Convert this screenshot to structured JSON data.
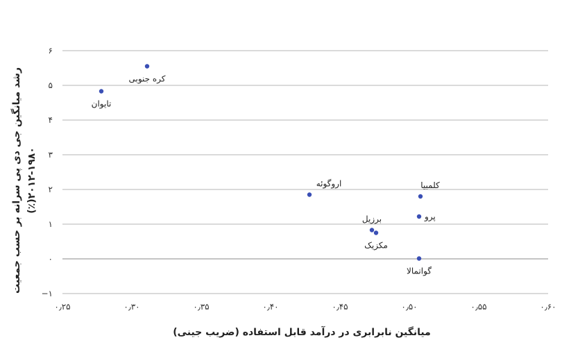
{
  "chart_data": {
    "type": "scatter",
    "xlabel": "میانگین نابرابری در درآمد قابل استفاده (ضریب جینی)",
    "ylabel_lines": [
      "رشد میانگین جی دی پی سرانه بر حسب جمعیت",
      "۲۰۱۲-۱۹۸۰(٪)"
    ],
    "xlim": [
      0.25,
      0.6
    ],
    "ylim": [
      -1,
      6
    ],
    "x_ticks": [
      {
        "value": 0.25,
        "label": "۰٫۲۵"
      },
      {
        "value": 0.3,
        "label": "۰٫۳۰"
      },
      {
        "value": 0.35,
        "label": "۰٫۳۵"
      },
      {
        "value": 0.4,
        "label": "۰٫۴۰"
      },
      {
        "value": 0.45,
        "label": "۰٫۴۵"
      },
      {
        "value": 0.5,
        "label": "۰٫۵۰"
      },
      {
        "value": 0.55,
        "label": "۰٫۵۵"
      },
      {
        "value": 0.6,
        "label": "۰٫۶۰"
      }
    ],
    "y_ticks": [
      {
        "value": 6,
        "label": "۶"
      },
      {
        "value": 5,
        "label": "۵"
      },
      {
        "value": 4,
        "label": "۴"
      },
      {
        "value": 3,
        "label": "۳"
      },
      {
        "value": 2,
        "label": "۲"
      },
      {
        "value": 1,
        "label": "۱"
      },
      {
        "value": 0,
        "label": "۰"
      },
      {
        "value": -1,
        "label": "−۱"
      }
    ],
    "points": [
      {
        "label": "تایوان",
        "x": 0.278,
        "y": 4.83,
        "label_pos": "below"
      },
      {
        "label": "کره جنوبی",
        "x": 0.311,
        "y": 5.55,
        "label_pos": "below"
      },
      {
        "label": "اروگوئه",
        "x": 0.428,
        "y": 1.85,
        "label_pos": "above"
      },
      {
        "label": "کلمبیا",
        "x": 0.508,
        "y": 1.8,
        "label_pos": "above"
      },
      {
        "label": "پرو",
        "x": 0.507,
        "y": 1.22,
        "label_pos": "right"
      },
      {
        "label": "برزیل",
        "x": 0.473,
        "y": 0.83,
        "label_pos": "above"
      },
      {
        "label": "مکزیک",
        "x": 0.476,
        "y": 0.75,
        "label_pos": "below"
      },
      {
        "label": "گواتمالا",
        "x": 0.507,
        "y": 0.01,
        "label_pos": "below"
      }
    ],
    "colors": {
      "point": "#3a4fb5",
      "grid": "#b5b5b5"
    },
    "grid": true,
    "legend": false
  }
}
